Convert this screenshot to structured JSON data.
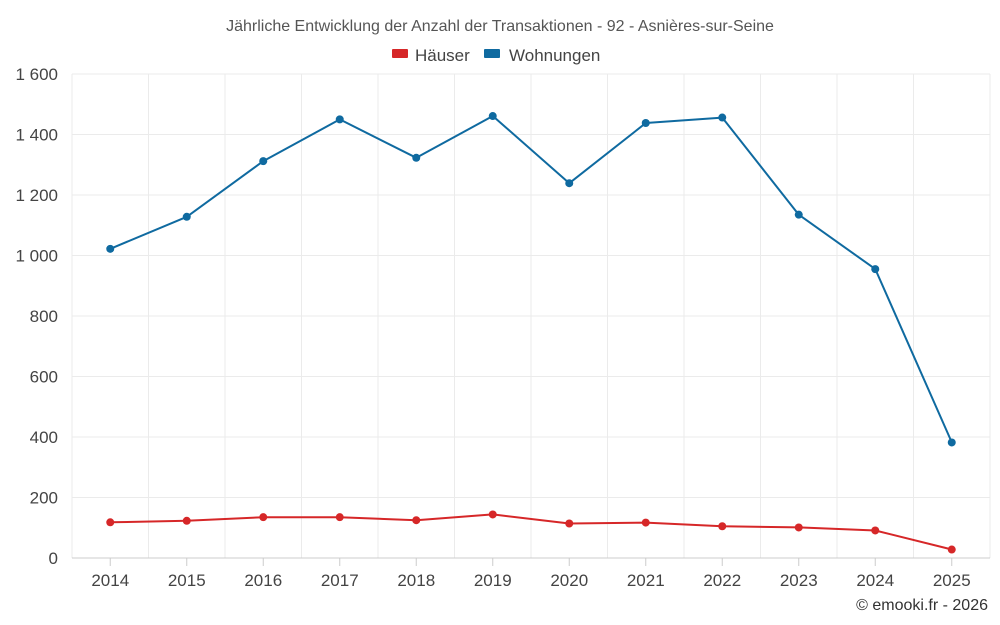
{
  "chart_data": {
    "type": "line",
    "title": "Jährliche Entwicklung der Anzahl der Transaktionen - 92 - Asnières-sur-Seine",
    "xlabel": "",
    "ylabel": "",
    "categories": [
      "2014",
      "2015",
      "2016",
      "2017",
      "2018",
      "2019",
      "2020",
      "2021",
      "2022",
      "2023",
      "2024",
      "2025"
    ],
    "ylim": [
      0,
      1600
    ],
    "yticks": [
      0,
      200,
      400,
      600,
      800,
      1000,
      1200,
      1400,
      1600
    ],
    "ytick_labels": [
      "0",
      "200",
      "400",
      "600",
      "800",
      "1 000",
      "1 200",
      "1 400",
      "1 600"
    ],
    "grid": true,
    "legend_position": "top-center",
    "series": [
      {
        "name": "Häuser",
        "color": "#d62728",
        "values": [
          118,
          123,
          135,
          135,
          125,
          144,
          114,
          117,
          105,
          101,
          91,
          28
        ]
      },
      {
        "name": "Wohnungen",
        "color": "#0f6aa0",
        "values": [
          1022,
          1128,
          1312,
          1450,
          1323,
          1461,
          1239,
          1438,
          1456,
          1135,
          955,
          382
        ]
      }
    ]
  },
  "footer": {
    "credit": "© emooki.fr - 2026"
  }
}
